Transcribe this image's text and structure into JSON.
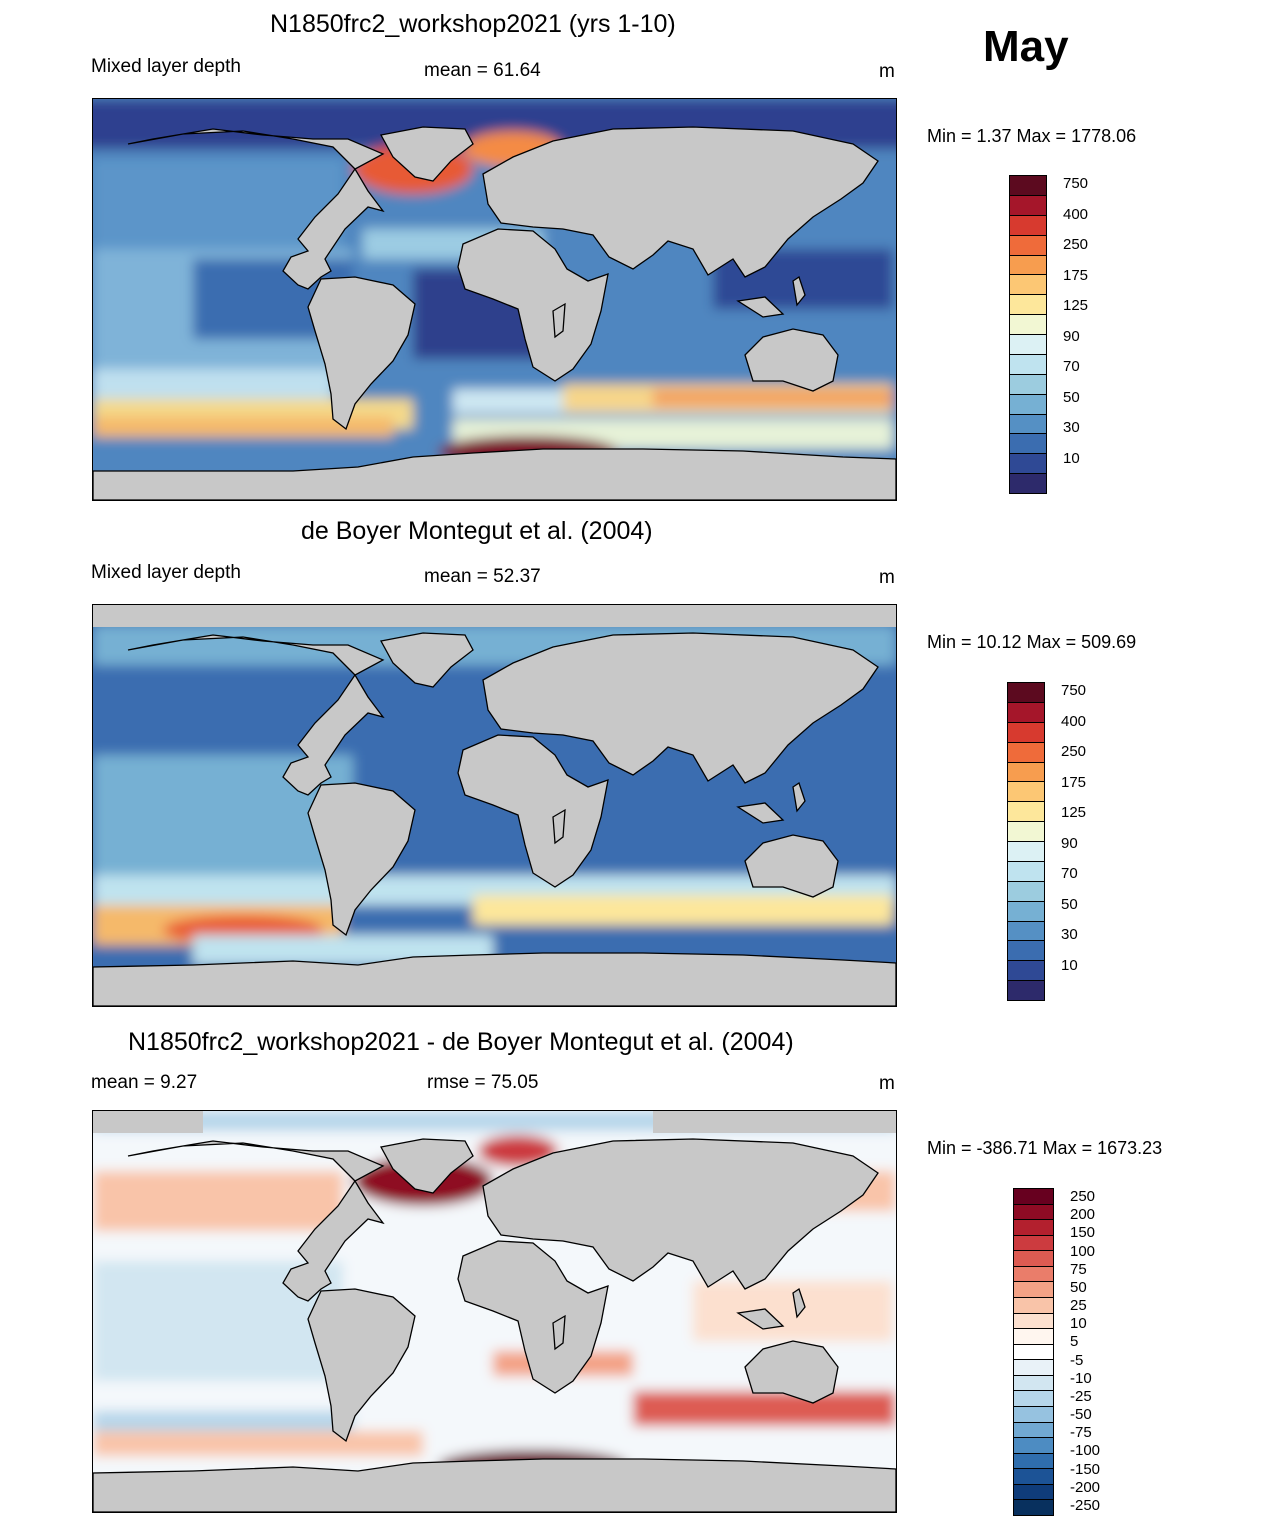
{
  "month_label": "May",
  "unit": "m",
  "land_color": "#c8c8c8",
  "panels": [
    {
      "id": "model",
      "title": "N1850frc2_workshop2021 (yrs 1-10)",
      "left_label": "Mixed layer depth",
      "center_label": "mean =  61.64",
      "unit": "m",
      "minmax": "Min =    1.37 Max = 1778.06",
      "palette": "depth"
    },
    {
      "id": "obs",
      "title": "de Boyer Montegut et al. (2004)",
      "left_label": "Mixed layer depth",
      "center_label": "mean =  52.37",
      "unit": "m",
      "minmax": "Min =  10.12 Max = 509.69",
      "palette": "depth"
    },
    {
      "id": "diff",
      "title": "N1850frc2_workshop2021 - de Boyer Montegut et al. (2004)",
      "left_label": "mean =   9.27",
      "center_label": "rmse =  75.05",
      "unit": "m",
      "minmax": "Min = -386.71 Max = 1673.23",
      "palette": "diff"
    }
  ],
  "colorbars": {
    "depth": {
      "labels": [
        "750",
        "400",
        "250",
        "175",
        "125",
        "90",
        "70",
        "50",
        "30",
        "10"
      ],
      "colors": [
        "#5c0a1f",
        "#a5162a",
        "#d73a2f",
        "#ef6b3a",
        "#f79d4f",
        "#fcc774",
        "#fde79b",
        "#f2f7d3",
        "#dcf1f4",
        "#bfe3ef",
        "#9cccdf",
        "#76b0d3",
        "#5590c4",
        "#3b6db0",
        "#2f4995",
        "#2d2a6b"
      ]
    },
    "diff": {
      "labels": [
        "250",
        "200",
        "150",
        "100",
        "75",
        "50",
        "25",
        "10",
        "5",
        "-5",
        "-10",
        "-25",
        "-50",
        "-75",
        "-100",
        "-150",
        "-200",
        "-250"
      ],
      "colors": [
        "#67001f",
        "#8e0b24",
        "#b3202e",
        "#cc3b3f",
        "#dd5b52",
        "#ea7d6a",
        "#f3a286",
        "#f9c4a9",
        "#fce0cf",
        "#fff6ef",
        "#ffffff",
        "#e9f2f8",
        "#d2e6f1",
        "#b6d6ea",
        "#96c2e0",
        "#72a9d2",
        "#4d8cc2",
        "#2f6eae",
        "#1c5396",
        "#0f3c7a",
        "#08305e"
      ]
    }
  }
}
